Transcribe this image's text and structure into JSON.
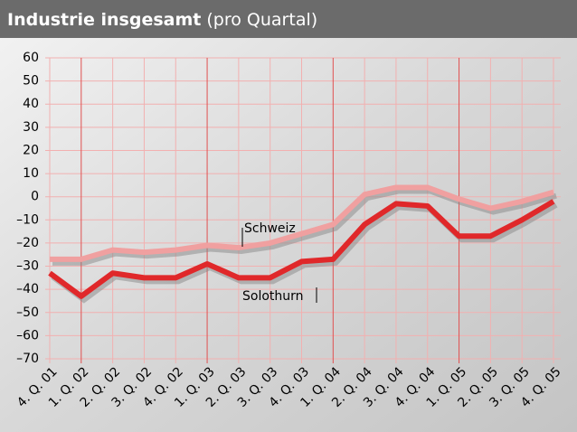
{
  "chart_data": {
    "type": "line",
    "title": "Industrie insgesamt",
    "subtitle": "(pro Quartal)",
    "categories": [
      "4. Q. 01",
      "1. Q. 02",
      "2. Q. 02",
      "3. Q. 02",
      "4. Q. 02",
      "1. Q. 03",
      "2. Q. 03",
      "3. Q. 03",
      "4. Q. 03",
      "1. Q. 04",
      "2. Q. 04",
      "3. Q. 04",
      "4. Q. 04",
      "1. Q. 05",
      "2. Q. 05",
      "3. Q. 05",
      "4. Q. 05"
    ],
    "series": [
      {
        "name": "Schweiz",
        "color": "#f0a0a0",
        "values": [
          -27,
          -27,
          -23,
          -24,
          -23,
          -21,
          -22,
          -20,
          -16,
          -12,
          1,
          4,
          4,
          -1,
          -5,
          -2,
          2
        ]
      },
      {
        "name": "Solothurn",
        "color": "#e0282a",
        "values": [
          -33,
          -43,
          -33,
          -35,
          -35,
          -29,
          -35,
          -35,
          -28,
          -27,
          -12,
          -3,
          -4,
          -17,
          -17,
          -10,
          -2
        ]
      }
    ],
    "ylim": [
      -70,
      60
    ],
    "yticks": [
      60,
      50,
      40,
      30,
      20,
      10,
      0,
      {
        "value": -10,
        "label": "–10"
      },
      {
        "value": -20,
        "label": "–20"
      },
      {
        "value": -30,
        "label": "–30"
      },
      {
        "value": -40,
        "label": "–40"
      },
      {
        "value": -50,
        "label": "–50"
      },
      {
        "value": -60,
        "label": "–60"
      },
      {
        "value": -70,
        "label": "–70"
      }
    ],
    "grid": true
  }
}
